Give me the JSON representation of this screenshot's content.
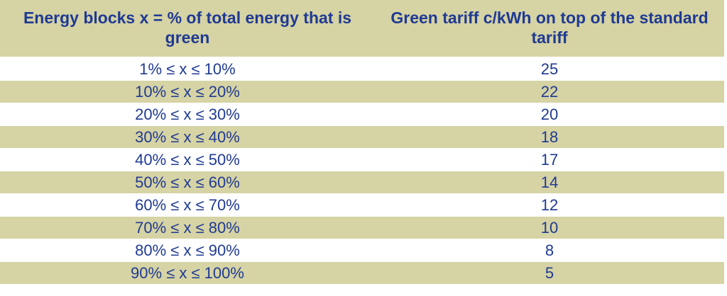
{
  "table": {
    "headers": [
      "Energy blocks x = % of total energy that is green",
      "Green tariff c/kWh on top of the standard tariff"
    ],
    "rows": [
      {
        "block": "1% ≤ x ≤ 10%",
        "tariff": "25"
      },
      {
        "block": "10% ≤ x ≤ 20%",
        "tariff": "22"
      },
      {
        "block": "20% ≤ x ≤ 30%",
        "tariff": "20"
      },
      {
        "block": "30% ≤ x ≤ 40%",
        "tariff": "18"
      },
      {
        "block": "40% ≤ x ≤ 50%",
        "tariff": "17"
      },
      {
        "block": "50% ≤ x ≤ 60%",
        "tariff": "14"
      },
      {
        "block": "60% ≤ x ≤ 70%",
        "tariff": "12"
      },
      {
        "block": "70% ≤ x ≤ 80%",
        "tariff": "10"
      },
      {
        "block": "80% ≤ x ≤ 90%",
        "tariff": "8"
      },
      {
        "block": "90% ≤ x ≤ 100%",
        "tariff": "5"
      }
    ]
  },
  "colors": {
    "header_band": "#d6d3a4",
    "text": "#1f3a93",
    "row_alt": "#d6d3a4",
    "row_plain": "#ffffff"
  }
}
